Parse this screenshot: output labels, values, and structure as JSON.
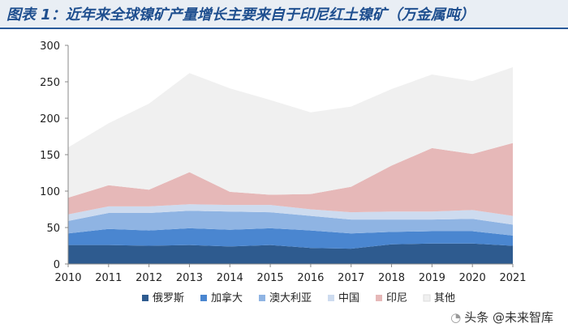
{
  "header": {
    "title": "图表 1：近年来全球镍矿产量增长主要来自于印尼红土镍矿（万金属吨）"
  },
  "watermark": {
    "text": "头条 @未来智库"
  },
  "chart_data": {
    "type": "area",
    "stacked": true,
    "title": "近年来全球镍矿产量增长主要来自于印尼红土镍矿",
    "unit": "万金属吨",
    "xlabel": "",
    "ylabel": "",
    "x": [
      "2010",
      "2011",
      "2012",
      "2013",
      "2014",
      "2015",
      "2016",
      "2017",
      "2018",
      "2019",
      "2020",
      "2021"
    ],
    "ylim": [
      0,
      300
    ],
    "yticks": [
      0,
      50,
      100,
      150,
      200,
      250,
      300
    ],
    "legend_position": "bottom",
    "grid": false,
    "series": [
      {
        "name": "俄罗斯",
        "color": "#2e5b8f",
        "values": [
          26,
          26,
          25,
          26,
          24,
          26,
          22,
          21,
          27,
          28,
          28,
          25
        ]
      },
      {
        "name": "加拿大",
        "color": "#4a86d0",
        "values": [
          16,
          22,
          21,
          23,
          23,
          23,
          24,
          21,
          17,
          17,
          17,
          14
        ]
      },
      {
        "name": "澳大利亚",
        "color": "#8fb4e3",
        "values": [
          17,
          22,
          24,
          24,
          25,
          22,
          20,
          19,
          17,
          16,
          17,
          15
        ]
      },
      {
        "name": "中国",
        "color": "#cddbef",
        "values": [
          9,
          9,
          9,
          9,
          9,
          10,
          9,
          10,
          11,
          11,
          12,
          12
        ]
      },
      {
        "name": "印尼",
        "color": "#e6b8b8",
        "values": [
          23,
          29,
          23,
          44,
          18,
          14,
          21,
          35,
          63,
          87,
          77,
          100
        ]
      },
      {
        "name": "其他",
        "color": "#f0f0f0",
        "values": [
          69,
          85,
          118,
          136,
          142,
          130,
          112,
          110,
          105,
          101,
          100,
          104
        ]
      }
    ]
  }
}
